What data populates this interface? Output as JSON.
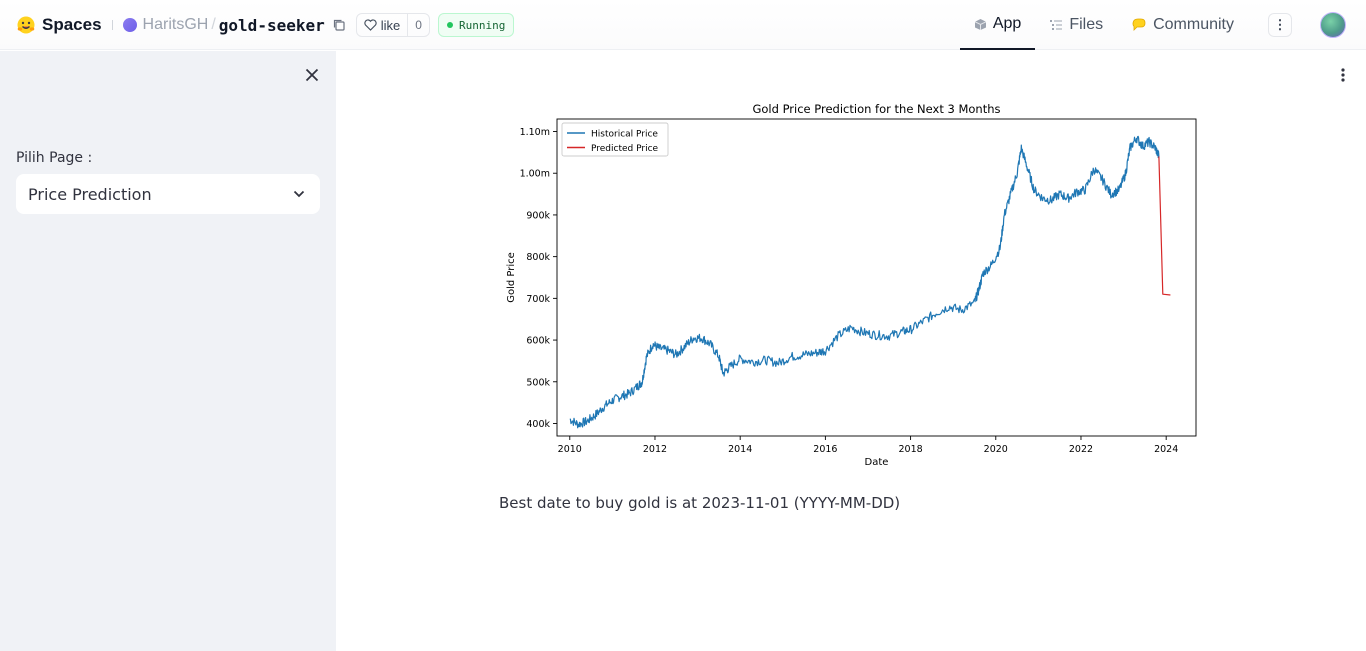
{
  "topbar": {
    "spaces_label": "Spaces",
    "owner": "HaritsGH",
    "repo": "gold-seeker",
    "like_label": "like",
    "like_count": "0",
    "status": "Running",
    "tabs": [
      {
        "label": "App",
        "icon": "cube-icon",
        "active": true
      },
      {
        "label": "Files",
        "icon": "files-icon",
        "active": false
      },
      {
        "label": "Community",
        "icon": "community-icon",
        "active": false
      }
    ],
    "more_label": "⋮"
  },
  "sidebar": {
    "select_label": "Pilih Page :",
    "select_value": "Price Prediction"
  },
  "main": {
    "result_text": "Best date to buy gold is at 2023-11-01 (YYYY-MM-DD)"
  },
  "chart_data": {
    "type": "line",
    "title": "Gold Price Prediction for the Next 3 Months",
    "xlabel": "Date",
    "ylabel": "Gold Price",
    "x_ticks": [
      "2010",
      "2012",
      "2014",
      "2016",
      "2018",
      "2020",
      "2022",
      "2024"
    ],
    "y_ticks": [
      "400k",
      "500k",
      "600k",
      "700k",
      "800k",
      "900k",
      "1.00m",
      "1.10m"
    ],
    "xlim": [
      2009.7,
      2024.7
    ],
    "ylim": [
      370000,
      1130000
    ],
    "legend_position": "top-left",
    "grid": false,
    "series": [
      {
        "name": "Historical Price",
        "color": "#1f77b4",
        "points": [
          [
            2010.0,
            410000
          ],
          [
            2010.2,
            398000
          ],
          [
            2010.4,
            405000
          ],
          [
            2010.6,
            420000
          ],
          [
            2010.8,
            440000
          ],
          [
            2011.0,
            455000
          ],
          [
            2011.2,
            465000
          ],
          [
            2011.4,
            472000
          ],
          [
            2011.6,
            490000
          ],
          [
            2011.7,
            500000
          ],
          [
            2011.8,
            560000
          ],
          [
            2011.95,
            590000
          ],
          [
            2012.1,
            580000
          ],
          [
            2012.3,
            575000
          ],
          [
            2012.5,
            565000
          ],
          [
            2012.7,
            585000
          ],
          [
            2012.9,
            605000
          ],
          [
            2013.1,
            605000
          ],
          [
            2013.3,
            590000
          ],
          [
            2013.5,
            560000
          ],
          [
            2013.6,
            520000
          ],
          [
            2013.75,
            535000
          ],
          [
            2014.0,
            555000
          ],
          [
            2014.3,
            548000
          ],
          [
            2014.6,
            552000
          ],
          [
            2014.9,
            545000
          ],
          [
            2015.2,
            560000
          ],
          [
            2015.5,
            565000
          ],
          [
            2015.8,
            570000
          ],
          [
            2016.0,
            575000
          ],
          [
            2016.3,
            610000
          ],
          [
            2016.6,
            630000
          ],
          [
            2016.9,
            618000
          ],
          [
            2017.2,
            612000
          ],
          [
            2017.5,
            610000
          ],
          [
            2017.8,
            620000
          ],
          [
            2018.0,
            625000
          ],
          [
            2018.3,
            645000
          ],
          [
            2018.6,
            665000
          ],
          [
            2018.9,
            680000
          ],
          [
            2019.2,
            672000
          ],
          [
            2019.5,
            690000
          ],
          [
            2019.6,
            720000
          ],
          [
            2019.7,
            760000
          ],
          [
            2019.9,
            780000
          ],
          [
            2020.1,
            820000
          ],
          [
            2020.2,
            900000
          ],
          [
            2020.35,
            950000
          ],
          [
            2020.5,
            1000000
          ],
          [
            2020.6,
            1060000
          ],
          [
            2020.75,
            1010000
          ],
          [
            2020.9,
            960000
          ],
          [
            2021.1,
            940000
          ],
          [
            2021.3,
            935000
          ],
          [
            2021.5,
            950000
          ],
          [
            2021.7,
            940000
          ],
          [
            2021.9,
            955000
          ],
          [
            2022.1,
            960000
          ],
          [
            2022.3,
            1010000
          ],
          [
            2022.5,
            985000
          ],
          [
            2022.7,
            950000
          ],
          [
            2022.9,
            960000
          ],
          [
            2023.05,
            1000000
          ],
          [
            2023.15,
            1060000
          ],
          [
            2023.3,
            1085000
          ],
          [
            2023.45,
            1065000
          ],
          [
            2023.6,
            1075000
          ],
          [
            2023.75,
            1060000
          ],
          [
            2023.83,
            1040000
          ]
        ]
      },
      {
        "name": "Predicted Price",
        "color": "#d62728",
        "points": [
          [
            2023.83,
            1040000
          ],
          [
            2023.92,
            710000
          ],
          [
            2024.1,
            708000
          ]
        ]
      }
    ]
  }
}
